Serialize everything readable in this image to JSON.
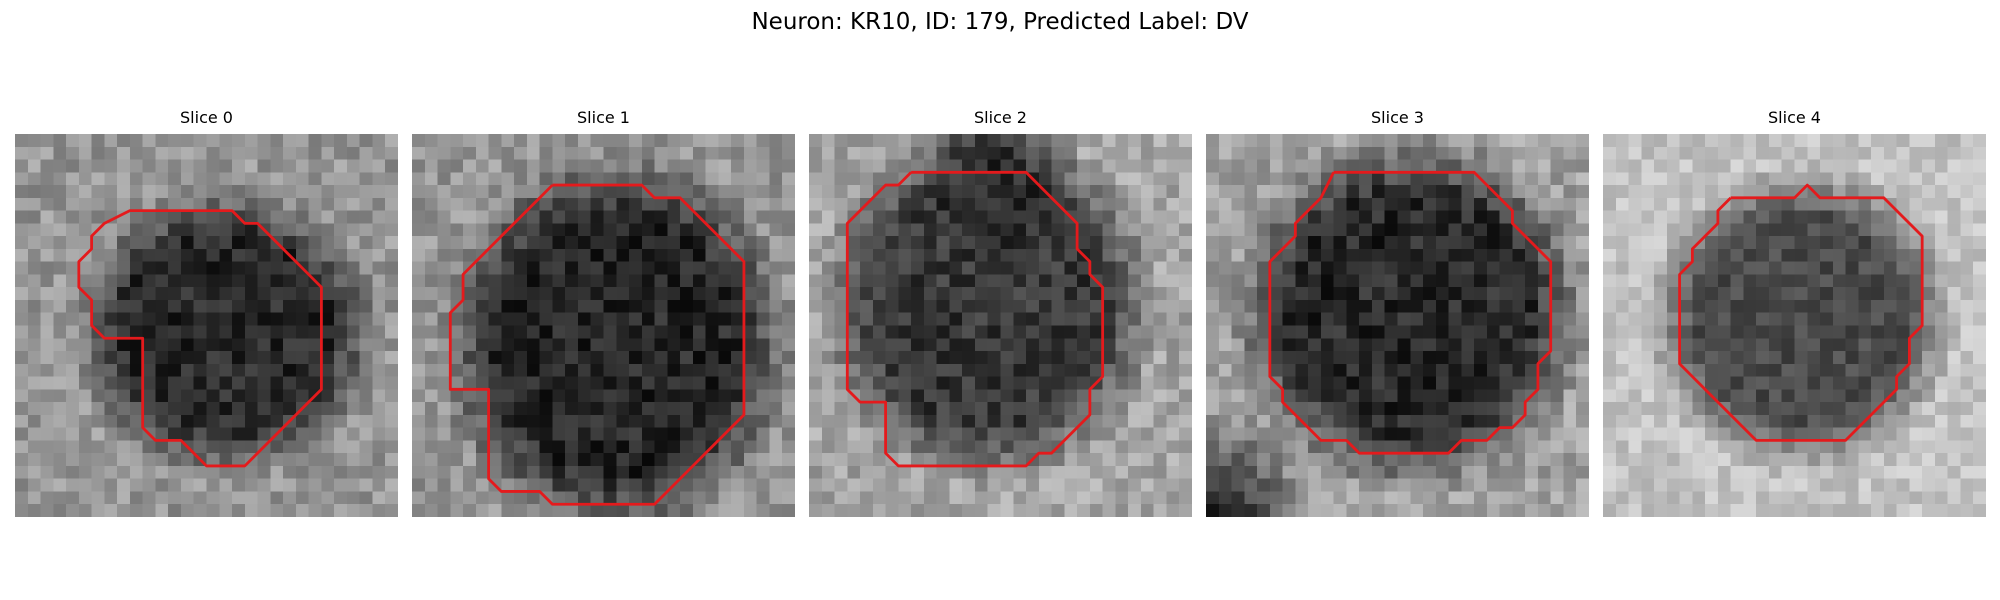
{
  "figure": {
    "title": "Neuron: KR10, ID: 179, Predicted Label: DV"
  },
  "panels": [
    {
      "title": "Slice 0",
      "image": "grayscale microscopy patch: dark irregular cell body on noisy lighter background",
      "contour_color": "#e41a1c",
      "contour": [
        [
          12,
          6
        ],
        [
          17,
          6
        ],
        [
          18,
          7
        ],
        [
          19,
          7
        ],
        [
          20,
          8
        ],
        [
          21,
          9
        ],
        [
          22,
          10
        ],
        [
          23,
          11
        ],
        [
          24,
          12
        ],
        [
          24,
          16
        ],
        [
          24,
          20
        ],
        [
          23,
          21
        ],
        [
          22,
          22
        ],
        [
          21,
          23
        ],
        [
          20,
          24
        ],
        [
          19,
          25
        ],
        [
          18,
          26
        ],
        [
          15,
          26
        ],
        [
          14,
          25
        ],
        [
          13,
          24
        ],
        [
          11,
          24
        ],
        [
          10,
          23
        ],
        [
          10,
          16
        ],
        [
          7,
          16
        ],
        [
          6,
          15
        ],
        [
          6,
          13
        ],
        [
          5,
          12
        ],
        [
          5,
          10
        ],
        [
          6,
          9
        ],
        [
          6,
          8
        ],
        [
          7,
          7
        ],
        [
          9,
          6
        ]
      ]
    },
    {
      "title": "Slice 1",
      "image": "grayscale microscopy patch: large dark rounded cell body",
      "contour_color": "#e41a1c",
      "contour": [
        [
          11,
          4
        ],
        [
          18,
          4
        ],
        [
          19,
          5
        ],
        [
          21,
          5
        ],
        [
          22,
          6
        ],
        [
          23,
          7
        ],
        [
          24,
          8
        ],
        [
          25,
          9
        ],
        [
          26,
          10
        ],
        [
          26,
          16
        ],
        [
          26,
          22
        ],
        [
          25,
          23
        ],
        [
          24,
          24
        ],
        [
          23,
          25
        ],
        [
          22,
          26
        ],
        [
          20,
          28
        ],
        [
          19,
          29
        ],
        [
          11,
          29
        ],
        [
          10,
          28
        ],
        [
          7,
          28
        ],
        [
          6,
          27
        ],
        [
          6,
          20
        ],
        [
          3,
          20
        ],
        [
          3,
          14
        ],
        [
          4,
          13
        ],
        [
          4,
          11
        ],
        [
          5,
          10
        ],
        [
          6,
          9
        ],
        [
          7,
          8
        ],
        [
          8,
          7
        ],
        [
          9,
          6
        ],
        [
          10,
          5
        ]
      ]
    },
    {
      "title": "Slice 2",
      "image": "grayscale microscopy patch: dark cell body with darker upper region",
      "contour_color": "#e41a1c",
      "contour": [
        [
          8,
          3
        ],
        [
          17,
          3
        ],
        [
          19,
          5
        ],
        [
          20,
          6
        ],
        [
          21,
          7
        ],
        [
          21,
          9
        ],
        [
          22,
          10
        ],
        [
          22,
          11
        ],
        [
          23,
          12
        ],
        [
          23,
          19
        ],
        [
          22,
          20
        ],
        [
          22,
          22
        ],
        [
          20,
          24
        ],
        [
          19,
          25
        ],
        [
          18,
          25
        ],
        [
          17,
          26
        ],
        [
          7,
          26
        ],
        [
          6,
          25
        ],
        [
          6,
          21
        ],
        [
          4,
          21
        ],
        [
          3,
          20
        ],
        [
          3,
          7
        ],
        [
          4,
          6
        ],
        [
          5,
          5
        ],
        [
          6,
          4
        ],
        [
          7,
          4
        ]
      ]
    },
    {
      "title": "Slice 3",
      "image": "grayscale microscopy patch: dark round cell body with very dark lower-left corner",
      "contour_color": "#e41a1c",
      "contour": [
        [
          10,
          3
        ],
        [
          21,
          3
        ],
        [
          22,
          4
        ],
        [
          23,
          5
        ],
        [
          24,
          6
        ],
        [
          24,
          7
        ],
        [
          25,
          8
        ],
        [
          26,
          9
        ],
        [
          27,
          10
        ],
        [
          27,
          17
        ],
        [
          26,
          18
        ],
        [
          26,
          20
        ],
        [
          25,
          21
        ],
        [
          25,
          22
        ],
        [
          24,
          23
        ],
        [
          23,
          23
        ],
        [
          22,
          24
        ],
        [
          20,
          24
        ],
        [
          19,
          25
        ],
        [
          12,
          25
        ],
        [
          11,
          24
        ],
        [
          9,
          24
        ],
        [
          8,
          23
        ],
        [
          7,
          22
        ],
        [
          6,
          21
        ],
        [
          6,
          20
        ],
        [
          5,
          19
        ],
        [
          5,
          10
        ],
        [
          6,
          9
        ],
        [
          7,
          8
        ],
        [
          7,
          7
        ],
        [
          8,
          6
        ],
        [
          9,
          5
        ]
      ]
    },
    {
      "title": "Slice 4",
      "image": "grayscale microscopy patch: medium-dark round cell body on bright noisy background",
      "contour_color": "#e41a1c",
      "contour": [
        [
          10,
          5
        ],
        [
          15,
          5
        ],
        [
          16,
          4
        ],
        [
          17,
          5
        ],
        [
          22,
          5
        ],
        [
          23,
          6
        ],
        [
          24,
          7
        ],
        [
          25,
          8
        ],
        [
          25,
          15
        ],
        [
          24,
          16
        ],
        [
          24,
          18
        ],
        [
          23,
          19
        ],
        [
          23,
          20
        ],
        [
          22,
          21
        ],
        [
          21,
          22
        ],
        [
          20,
          23
        ],
        [
          19,
          24
        ],
        [
          12,
          24
        ],
        [
          11,
          23
        ],
        [
          10,
          22
        ],
        [
          9,
          21
        ],
        [
          8,
          20
        ],
        [
          7,
          19
        ],
        [
          6,
          18
        ],
        [
          6,
          11
        ],
        [
          7,
          10
        ],
        [
          7,
          9
        ],
        [
          8,
          8
        ],
        [
          9,
          7
        ],
        [
          9,
          6
        ]
      ]
    }
  ]
}
